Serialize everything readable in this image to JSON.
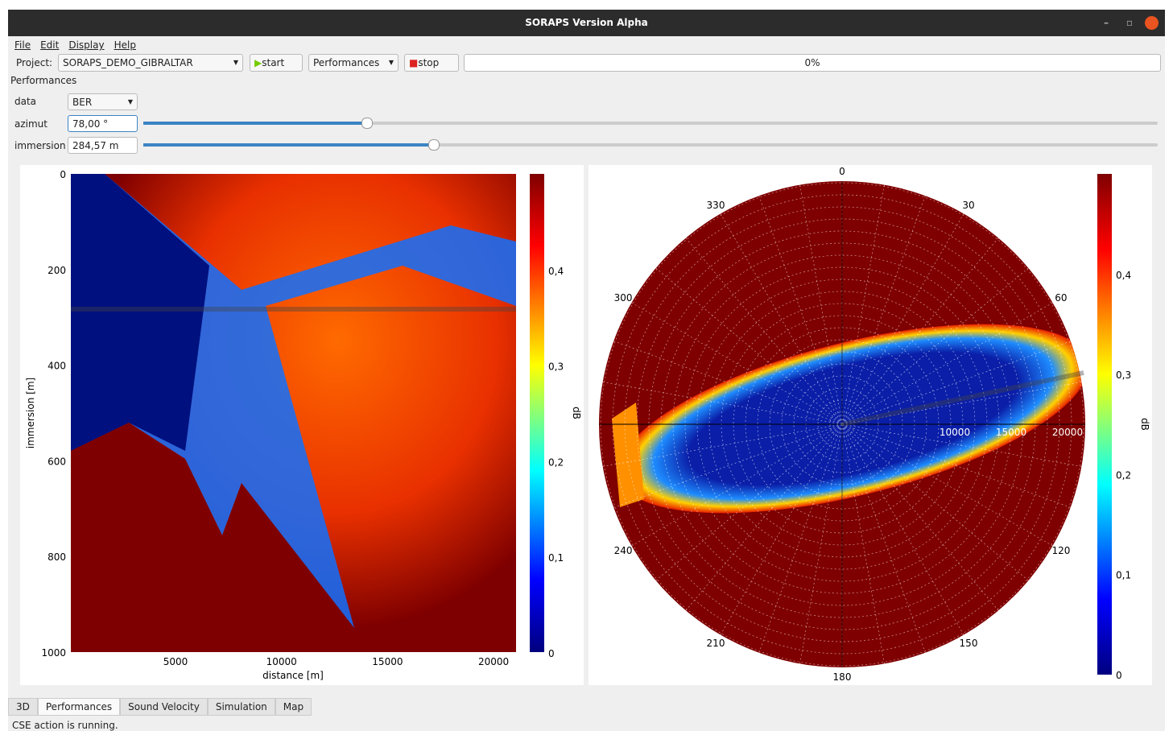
{
  "window": {
    "title": "SORAPS Version Alpha"
  },
  "menu": [
    "File",
    "Edit",
    "Display",
    "Help"
  ],
  "toolbar": {
    "project_label": "Project:",
    "project": "SORAPS_DEMO_GIBRALTAR",
    "start": "start",
    "mode": "Performances",
    "stop": "stop",
    "progress": "0%"
  },
  "panel": {
    "title": "Performances"
  },
  "controls": {
    "data_label": "data",
    "data_value": "BER",
    "azimut_label": "azimut",
    "azimut_value": "78,00 °",
    "immersion_label": "immersion",
    "immersion_value": "284,57 m"
  },
  "left_plot": {
    "yticks": [
      "0",
      "200",
      "400",
      "600",
      "800",
      "1000"
    ],
    "xticks": [
      "5000",
      "10000",
      "15000",
      "20000"
    ],
    "xlabel": "distance [m]",
    "ylabel": "immersion [m]",
    "colorbar_ticks": [
      "0",
      "0,1",
      "0,2",
      "0,3",
      "0,4"
    ],
    "colorbar_label": "dB"
  },
  "right_plot": {
    "angle_labels": [
      "0",
      "30",
      "60",
      "120",
      "150",
      "180",
      "210",
      "240",
      "300",
      "330"
    ],
    "range_ticks": [
      "10000",
      "15000",
      "20000"
    ],
    "colorbar_ticks": [
      "0",
      "0,1",
      "0,2",
      "0,3",
      "0,4"
    ],
    "colorbar_label": "dB"
  },
  "tabs": [
    "3D",
    "Performances",
    "Sound Velocity",
    "Simulation",
    "Map"
  ],
  "status": "CSE action is running."
}
